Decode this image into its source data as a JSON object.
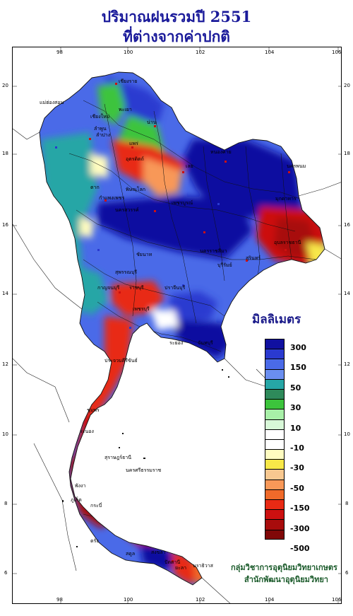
{
  "title": {
    "line1": "ปริมาณฝนรวมปี  2551",
    "line2": "ที่ต่างจากค่าปกติ"
  },
  "axes": {
    "longitude_ticks": [
      "98",
      "100",
      "102",
      "104",
      "106"
    ],
    "latitude_ticks": [
      "20",
      "18",
      "16",
      "14",
      "12",
      "10",
      "8",
      "6"
    ]
  },
  "legend": {
    "title": "มิลลิเมตร",
    "labels": [
      "300",
      "150",
      "50",
      "30",
      "10",
      "-10",
      "-30",
      "-50",
      "-150",
      "-300",
      "-500"
    ],
    "colors": [
      "#1010a0",
      "#2a3ad0",
      "#4a6ae8",
      "#6a8ef0",
      "#26a6a6",
      "#2e8a5a",
      "#3cc43c",
      "#a8f0a8",
      "#d8f8d8",
      "#ffffff",
      "#ffffff",
      "#fffcc0",
      "#f8e848",
      "#f8c890",
      "#f89858",
      "#f06a2a",
      "#e82a14",
      "#cc1010",
      "#a80c0c",
      "#800808"
    ]
  },
  "credits": {
    "line1": "กลุ่มวิชาการอุตุนิยมวิทยาเกษตร",
    "line2": "สำนักพัฒนาอุตุนิยมวิทยา"
  },
  "place_labels": [
    "เชียงราย",
    "แม่ฮ่องสอน",
    "เชียงใหม่",
    "ลำพูน",
    "พะเยา",
    "น่าน",
    "ลำปาง",
    "แพร่",
    "อุตรดิตถ์",
    "หนองคาย",
    "นครพนม",
    "ตาก",
    "พิษณุโลก",
    "เลย",
    "มุกดาหาร",
    "กำแพงเพชร",
    "เพชรบูรณ์",
    "อุบลราชธานี",
    "นครสวรรค์",
    "ชัยนาท",
    "นครราชสีมา",
    "สุรินทร์",
    "บุรีรัมย์",
    "กาญจนบุรี",
    "สุพรรณบุรี",
    "ปราจีนบุรี",
    "ราชบุรี",
    "เพชรบุรี",
    "ระยอง",
    "จันทบุรี",
    "ประจวบคีรีขันธ์",
    "ชุมพร",
    "ระนอง",
    "สุราษฎร์ธานี",
    "พังงา",
    "ภูเก็ต",
    "กระบี่",
    "นครศรีธรรมราช",
    "ตรัง",
    "สงขลา",
    "สตูล",
    "ยะลา",
    "นราธิวาส",
    "ปัตตานี"
  ]
}
